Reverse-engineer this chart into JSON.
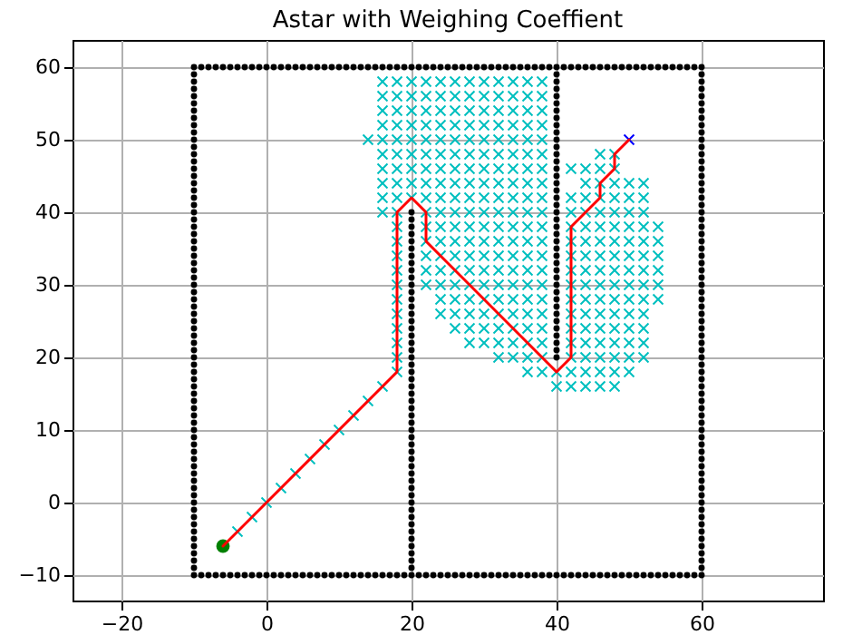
{
  "chart_data": {
    "type": "scatter",
    "title": "Astar with Weighing Coeffient",
    "xlim": [
      -26.75,
      76.75
    ],
    "ylim": [
      -13.5,
      63.75
    ],
    "xticks": [
      -20,
      0,
      20,
      40,
      60
    ],
    "yticks": [
      -10,
      0,
      10,
      20,
      30,
      40,
      50,
      60
    ],
    "grid": true,
    "series": [
      {
        "color": "#000000",
        "marker": "circle",
        "x": [
          -10,
          -9,
          -8,
          -7,
          -6,
          -5,
          -4,
          -3,
          -2,
          -1,
          0,
          1,
          2,
          3,
          4,
          5,
          6,
          7,
          8,
          9,
          10,
          11,
          12,
          13,
          14,
          15,
          16,
          17,
          18,
          19,
          20,
          21,
          22,
          23,
          24,
          25,
          26,
          27,
          28,
          29,
          30,
          31,
          32,
          33,
          34,
          35,
          36,
          37,
          38,
          39,
          40,
          41,
          42,
          43,
          44,
          45,
          46,
          47,
          48,
          49,
          50,
          51,
          52,
          53,
          54,
          55,
          56,
          57,
          58,
          59,
          60
        ],
        "values": [
          -10,
          -10,
          -10,
          -10,
          -10,
          -10,
          -10,
          -10,
          -10,
          -10,
          -10,
          -10,
          -10,
          -10,
          -10,
          -10,
          -10,
          -10,
          -10,
          -10,
          -10,
          -10,
          -10,
          -10,
          -10,
          -10,
          -10,
          -10,
          -10,
          -10,
          -10,
          -10,
          -10,
          -10,
          -10,
          -10,
          -10,
          -10,
          -10,
          -10,
          -10,
          -10,
          -10,
          -10,
          -10,
          -10,
          -10,
          -10,
          -10,
          -10,
          -10,
          -10,
          -10,
          -10,
          -10,
          -10,
          -10,
          -10,
          -10,
          -10,
          -10,
          -10,
          -10,
          -10,
          -10,
          -10,
          -10,
          -10,
          -10,
          -10,
          -10
        ]
      },
      {
        "color": "#000000",
        "marker": "circle",
        "x": [
          -10,
          -9,
          -8,
          -7,
          -6,
          -5,
          -4,
          -3,
          -2,
          -1,
          0,
          1,
          2,
          3,
          4,
          5,
          6,
          7,
          8,
          9,
          10,
          11,
          12,
          13,
          14,
          15,
          16,
          17,
          18,
          19,
          20,
          21,
          22,
          23,
          24,
          25,
          26,
          27,
          28,
          29,
          30,
          31,
          32,
          33,
          34,
          35,
          36,
          37,
          38,
          39,
          40,
          41,
          42,
          43,
          44,
          45,
          46,
          47,
          48,
          49,
          50,
          51,
          52,
          53,
          54,
          55,
          56,
          57,
          58,
          59,
          60
        ],
        "values": [
          60,
          60,
          60,
          60,
          60,
          60,
          60,
          60,
          60,
          60,
          60,
          60,
          60,
          60,
          60,
          60,
          60,
          60,
          60,
          60,
          60,
          60,
          60,
          60,
          60,
          60,
          60,
          60,
          60,
          60,
          60,
          60,
          60,
          60,
          60,
          60,
          60,
          60,
          60,
          60,
          60,
          60,
          60,
          60,
          60,
          60,
          60,
          60,
          60,
          60,
          60,
          60,
          60,
          60,
          60,
          60,
          60,
          60,
          60,
          60,
          60,
          60,
          60,
          60,
          60,
          60,
          60,
          60,
          60,
          60,
          60
        ]
      },
      {
        "color": "#000000",
        "marker": "circle",
        "x": [
          -10,
          -10,
          -10,
          -10,
          -10,
          -10,
          -10,
          -10,
          -10,
          -10,
          -10,
          -10,
          -10,
          -10,
          -10,
          -10,
          -10,
          -10,
          -10,
          -10,
          -10,
          -10,
          -10,
          -10,
          -10,
          -10,
          -10,
          -10,
          -10,
          -10,
          -10,
          -10,
          -10,
          -10,
          -10,
          -10,
          -10,
          -10,
          -10,
          -10,
          -10,
          -10,
          -10,
          -10,
          -10,
          -10,
          -10,
          -10,
          -10,
          -10,
          -10,
          -10,
          -10,
          -10,
          -10,
          -10,
          -10,
          -10,
          -10,
          -10,
          -10,
          -10,
          -10,
          -10,
          -10,
          -10,
          -10,
          -10,
          -10
        ],
        "values": [
          -9,
          -8,
          -7,
          -6,
          -5,
          -4,
          -3,
          -2,
          -1,
          0,
          1,
          2,
          3,
          4,
          5,
          6,
          7,
          8,
          9,
          10,
          11,
          12,
          13,
          14,
          15,
          16,
          17,
          18,
          19,
          20,
          21,
          22,
          23,
          24,
          25,
          26,
          27,
          28,
          29,
          30,
          31,
          32,
          33,
          34,
          35,
          36,
          37,
          38,
          39,
          40,
          41,
          42,
          43,
          44,
          45,
          46,
          47,
          48,
          49,
          50,
          51,
          52,
          53,
          54,
          55,
          56,
          57,
          58,
          59
        ]
      },
      {
        "color": "#000000",
        "marker": "circle",
        "x": [
          60,
          60,
          60,
          60,
          60,
          60,
          60,
          60,
          60,
          60,
          60,
          60,
          60,
          60,
          60,
          60,
          60,
          60,
          60,
          60,
          60,
          60,
          60,
          60,
          60,
          60,
          60,
          60,
          60,
          60,
          60,
          60,
          60,
          60,
          60,
          60,
          60,
          60,
          60,
          60,
          60,
          60,
          60,
          60,
          60,
          60,
          60,
          60,
          60,
          60,
          60,
          60,
          60,
          60,
          60,
          60,
          60,
          60,
          60,
          60,
          60,
          60,
          60,
          60,
          60,
          60,
          60,
          60,
          60
        ],
        "values": [
          -9,
          -8,
          -7,
          -6,
          -5,
          -4,
          -3,
          -2,
          -1,
          0,
          1,
          2,
          3,
          4,
          5,
          6,
          7,
          8,
          9,
          10,
          11,
          12,
          13,
          14,
          15,
          16,
          17,
          18,
          19,
          20,
          21,
          22,
          23,
          24,
          25,
          26,
          27,
          28,
          29,
          30,
          31,
          32,
          33,
          34,
          35,
          36,
          37,
          38,
          39,
          40,
          41,
          42,
          43,
          44,
          45,
          46,
          47,
          48,
          49,
          50,
          51,
          52,
          53,
          54,
          55,
          56,
          57,
          58,
          59
        ]
      },
      {
        "color": "#000000",
        "marker": "circle",
        "x": [
          20,
          20,
          20,
          20,
          20,
          20,
          20,
          20,
          20,
          20,
          20,
          20,
          20,
          20,
          20,
          20,
          20,
          20,
          20,
          20,
          20,
          20,
          20,
          20,
          20,
          20,
          20,
          20,
          20,
          20,
          20,
          20,
          20,
          20,
          20,
          20,
          20,
          20,
          20,
          20,
          20,
          20,
          20,
          20,
          20,
          20,
          20,
          20,
          20,
          20
        ],
        "values": [
          -9,
          -8,
          -7,
          -6,
          -5,
          -4,
          -3,
          -2,
          -1,
          0,
          1,
          2,
          3,
          4,
          5,
          6,
          7,
          8,
          9,
          10,
          11,
          12,
          13,
          14,
          15,
          16,
          17,
          18,
          19,
          20,
          21,
          22,
          23,
          24,
          25,
          26,
          27,
          28,
          29,
          30,
          31,
          32,
          33,
          34,
          35,
          36,
          37,
          38,
          39,
          40
        ]
      },
      {
        "color": "#000000",
        "marker": "circle",
        "x": [
          40,
          40,
          40,
          40,
          40,
          40,
          40,
          40,
          40,
          40,
          40,
          40,
          40,
          40,
          40,
          40,
          40,
          40,
          40,
          40,
          40,
          40,
          40,
          40,
          40,
          40,
          40,
          40,
          40,
          40,
          40,
          40,
          40,
          40,
          40,
          40,
          40,
          40,
          40,
          40
        ],
        "values": [
          20,
          21,
          22,
          23,
          24,
          25,
          26,
          27,
          28,
          29,
          30,
          31,
          32,
          33,
          34,
          35,
          36,
          37,
          38,
          39,
          40,
          41,
          42,
          43,
          44,
          45,
          46,
          47,
          48,
          49,
          50,
          51,
          52,
          53,
          54,
          55,
          56,
          57,
          58,
          59
        ]
      },
      {
        "color": "#008000",
        "marker": "circle",
        "x": [
          -6
        ],
        "values": [
          -6
        ]
      },
      {
        "color": "#0000ff",
        "marker": "cross",
        "x": [
          50
        ],
        "values": [
          50
        ]
      },
      {
        "color": "#00bfbf",
        "marker": "cross",
        "x": [
          16,
          18,
          20,
          22,
          24,
          26,
          28,
          30,
          32,
          34,
          36,
          38
        ],
        "values": [
          58,
          58,
          58,
          58,
          58,
          58,
          58,
          58,
          58,
          58,
          58,
          58
        ]
      },
      {
        "color": "#00bfbf",
        "marker": "cross",
        "x": [
          16,
          18,
          20,
          22,
          24,
          26,
          28,
          30,
          32,
          34,
          36,
          38
        ],
        "values": [
          56,
          56,
          56,
          56,
          56,
          56,
          56,
          56,
          56,
          56,
          56,
          56
        ]
      },
      {
        "color": "#00bfbf",
        "marker": "cross",
        "x": [
          16,
          18,
          20,
          22,
          24,
          26,
          28,
          30,
          32,
          34,
          36,
          38
        ],
        "values": [
          54,
          54,
          54,
          54,
          54,
          54,
          54,
          54,
          54,
          54,
          54,
          54
        ]
      },
      {
        "color": "#00bfbf",
        "marker": "cross",
        "x": [
          16,
          18,
          20,
          22,
          24,
          26,
          28,
          30,
          32,
          34,
          36,
          38
        ],
        "values": [
          52,
          52,
          52,
          52,
          52,
          52,
          52,
          52,
          52,
          52,
          52,
          52
        ]
      },
      {
        "color": "#00bfbf",
        "marker": "cross",
        "x": [
          14,
          16,
          18,
          20,
          22,
          24,
          26,
          28,
          30,
          32,
          34,
          36,
          38
        ],
        "values": [
          50,
          50,
          50,
          50,
          50,
          50,
          50,
          50,
          50,
          50,
          50,
          50,
          50
        ]
      },
      {
        "color": "#00bfbf",
        "marker": "cross",
        "x": [
          16,
          18,
          20,
          22,
          24,
          26,
          28,
          30,
          32,
          34,
          36,
          38,
          46,
          48
        ],
        "values": [
          48,
          48,
          48,
          48,
          48,
          48,
          48,
          48,
          48,
          48,
          48,
          48,
          48,
          48
        ]
      },
      {
        "color": "#00bfbf",
        "marker": "cross",
        "x": [
          16,
          18,
          20,
          22,
          24,
          26,
          28,
          30,
          32,
          34,
          36,
          38,
          42,
          44,
          46,
          48
        ],
        "values": [
          46,
          46,
          46,
          46,
          46,
          46,
          46,
          46,
          46,
          46,
          46,
          46,
          46,
          46,
          46,
          46
        ]
      },
      {
        "color": "#00bfbf",
        "marker": "cross",
        "x": [
          16,
          18,
          20,
          22,
          24,
          26,
          28,
          30,
          32,
          34,
          36,
          38,
          44,
          46,
          48,
          50,
          52
        ],
        "values": [
          44,
          44,
          44,
          44,
          44,
          44,
          44,
          44,
          44,
          44,
          44,
          44,
          44,
          44,
          44,
          44,
          44
        ]
      },
      {
        "color": "#00bfbf",
        "marker": "cross",
        "x": [
          16,
          18,
          20,
          22,
          24,
          26,
          28,
          30,
          32,
          34,
          36,
          38,
          42,
          44,
          46,
          48,
          50,
          52
        ],
        "values": [
          42,
          42,
          42,
          42,
          42,
          42,
          42,
          42,
          42,
          42,
          42,
          42,
          42,
          42,
          42,
          42,
          42,
          42
        ]
      },
      {
        "color": "#00bfbf",
        "marker": "cross",
        "x": [
          16,
          18,
          22,
          24,
          26,
          28,
          30,
          32,
          34,
          36,
          38,
          42,
          44,
          46,
          48,
          50,
          52
        ],
        "values": [
          40,
          40,
          40,
          40,
          40,
          40,
          40,
          40,
          40,
          40,
          40,
          40,
          40,
          40,
          40,
          40,
          40
        ]
      },
      {
        "color": "#00bfbf",
        "marker": "cross",
        "x": [
          22,
          24,
          26,
          28,
          30,
          32,
          34,
          36,
          38,
          42,
          44,
          46,
          48,
          50,
          52,
          54
        ],
        "values": [
          38,
          38,
          38,
          38,
          38,
          38,
          38,
          38,
          38,
          38,
          38,
          38,
          38,
          38,
          38,
          38
        ]
      },
      {
        "color": "#00bfbf",
        "marker": "cross",
        "x": [
          22,
          24,
          26,
          28,
          30,
          32,
          34,
          36,
          38,
          42,
          44,
          46,
          48,
          50,
          52,
          54
        ],
        "values": [
          36,
          36,
          36,
          36,
          36,
          36,
          36,
          36,
          36,
          36,
          36,
          36,
          36,
          36,
          36,
          36
        ]
      },
      {
        "color": "#00bfbf",
        "marker": "cross",
        "x": [
          22,
          24,
          26,
          28,
          30,
          32,
          34,
          36,
          38,
          42,
          44,
          46,
          48,
          50,
          52,
          54
        ],
        "values": [
          34,
          34,
          34,
          34,
          34,
          34,
          34,
          34,
          34,
          34,
          34,
          34,
          34,
          34,
          34,
          34
        ]
      },
      {
        "color": "#00bfbf",
        "marker": "cross",
        "x": [
          22,
          24,
          26,
          28,
          30,
          32,
          34,
          36,
          38,
          42,
          44,
          46,
          48,
          50,
          52,
          54
        ],
        "values": [
          32,
          32,
          32,
          32,
          32,
          32,
          32,
          32,
          32,
          32,
          32,
          32,
          32,
          32,
          32,
          32
        ]
      },
      {
        "color": "#00bfbf",
        "marker": "cross",
        "x": [
          22,
          24,
          26,
          28,
          30,
          32,
          34,
          36,
          38,
          42,
          44,
          46,
          48,
          50,
          52,
          54
        ],
        "values": [
          30,
          30,
          30,
          30,
          30,
          30,
          30,
          30,
          30,
          30,
          30,
          30,
          30,
          30,
          30,
          30
        ]
      },
      {
        "color": "#00bfbf",
        "marker": "cross",
        "x": [
          24,
          26,
          28,
          30,
          32,
          34,
          36,
          38,
          42,
          44,
          46,
          48,
          50,
          52,
          54
        ],
        "values": [
          28,
          28,
          28,
          28,
          28,
          28,
          28,
          28,
          28,
          28,
          28,
          28,
          28,
          28,
          28
        ]
      },
      {
        "color": "#00bfbf",
        "marker": "cross",
        "x": [
          24,
          26,
          28,
          30,
          32,
          34,
          36,
          38,
          42,
          44,
          46,
          48,
          50,
          52
        ],
        "values": [
          26,
          26,
          26,
          26,
          26,
          26,
          26,
          26,
          26,
          26,
          26,
          26,
          26,
          26
        ]
      },
      {
        "color": "#00bfbf",
        "marker": "cross",
        "x": [
          26,
          28,
          30,
          32,
          34,
          36,
          38,
          42,
          44,
          46,
          48,
          50,
          52
        ],
        "values": [
          24,
          24,
          24,
          24,
          24,
          24,
          24,
          24,
          24,
          24,
          24,
          24,
          24
        ]
      },
      {
        "color": "#00bfbf",
        "marker": "cross",
        "x": [
          28,
          30,
          32,
          34,
          36,
          38,
          42,
          44,
          46,
          48,
          50,
          52
        ],
        "values": [
          22,
          22,
          22,
          22,
          22,
          22,
          22,
          22,
          22,
          22,
          22,
          22
        ]
      },
      {
        "color": "#00bfbf",
        "marker": "cross",
        "x": [
          32,
          34,
          36,
          38,
          42,
          44,
          46,
          48,
          50,
          52
        ],
        "values": [
          20,
          20,
          20,
          20,
          20,
          20,
          20,
          20,
          20,
          20
        ]
      },
      {
        "color": "#00bfbf",
        "marker": "cross",
        "x": [
          36,
          38,
          40,
          42,
          44,
          46,
          48,
          50
        ],
        "values": [
          18,
          18,
          18,
          18,
          18,
          18,
          18,
          18
        ]
      },
      {
        "color": "#00bfbf",
        "marker": "cross",
        "x": [
          40,
          42,
          44,
          46,
          48
        ],
        "values": [
          16,
          16,
          16,
          16,
          16
        ]
      },
      {
        "color": "#00bfbf",
        "marker": "cross",
        "x": [
          -4,
          -2,
          0,
          2,
          4,
          6,
          8,
          10,
          12,
          14,
          16
        ],
        "values": [
          -4,
          -2,
          0,
          2,
          4,
          6,
          8,
          10,
          12,
          14,
          16
        ]
      },
      {
        "color": "#00bfbf",
        "marker": "cross",
        "x": [
          18,
          18,
          18,
          18,
          18,
          18,
          18,
          18,
          18,
          18,
          18
        ],
        "values": [
          18,
          20,
          22,
          24,
          26,
          28,
          30,
          32,
          34,
          36,
          38
        ]
      },
      {
        "type": "line",
        "color": "#ff0000",
        "marker": "none",
        "line_style": "solid",
        "x": [
          -6,
          18,
          18,
          20,
          22,
          22,
          40,
          42,
          42,
          46,
          46,
          48,
          48,
          50
        ],
        "values": [
          -6,
          18,
          40,
          42,
          40,
          36,
          18,
          20,
          38,
          42,
          44,
          46,
          48,
          50
        ]
      }
    ]
  }
}
